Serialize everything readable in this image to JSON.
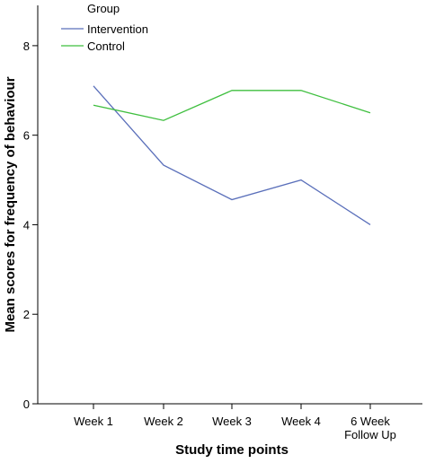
{
  "chart_data": {
    "type": "line",
    "categories": [
      "Week 1",
      "Week 2",
      "Week 3",
      "Week 4",
      "6 Week\nFollow Up"
    ],
    "series": [
      {
        "name": "Intervention",
        "values": [
          7.1,
          5.33,
          4.56,
          5.0,
          4.0
        ],
        "color": "#5a6fba"
      },
      {
        "name": "Control",
        "values": [
          6.67,
          6.33,
          7.0,
          7.0,
          6.5
        ],
        "color": "#3fbf3f"
      }
    ],
    "legend_title": "Group",
    "legend_position": "top-left",
    "xlabel": "Study time points",
    "ylabel": "Mean scores for frequency of behaviour",
    "ylim": [
      0,
      8.9
    ],
    "yticks": [
      0,
      2,
      4,
      6,
      8
    ],
    "grid": false
  }
}
